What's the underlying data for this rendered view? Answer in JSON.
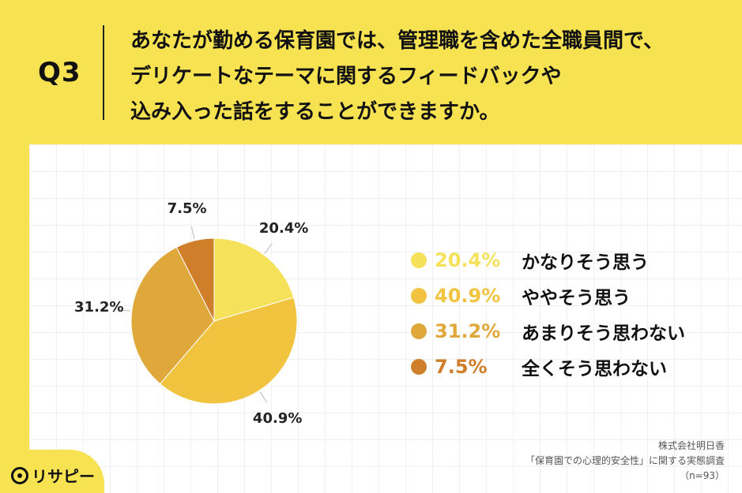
{
  "header": {
    "q_label": "Q3",
    "question_lines": [
      "あなたが勤める保育園では、管理職を含めた全職員間で、",
      "デリケートなテーマに関するフィードバックや",
      "込み入った話をすることができますか。"
    ]
  },
  "chart_data": {
    "type": "pie",
    "title": "",
    "slices": [
      {
        "label": "かなりそう思う",
        "value": 20.4,
        "display": "20.4%",
        "color": "#F5E15A"
      },
      {
        "label": "ややそう思う",
        "value": 40.9,
        "display": "40.9%",
        "color": "#F1C33E"
      },
      {
        "label": "あまりそう思わない",
        "value": 31.2,
        "display": "31.2%",
        "color": "#E0A83A"
      },
      {
        "label": "全くそう思わない",
        "value": 7.5,
        "display": "7.5%",
        "color": "#CF7F2A"
      }
    ],
    "legend_placement": "right"
  },
  "source": {
    "company": "株式会社明日香",
    "survey": "「保育園での心理的安全性」に関する実態調査",
    "sample": "（n=93）"
  },
  "logo": {
    "text": "リサピー"
  }
}
